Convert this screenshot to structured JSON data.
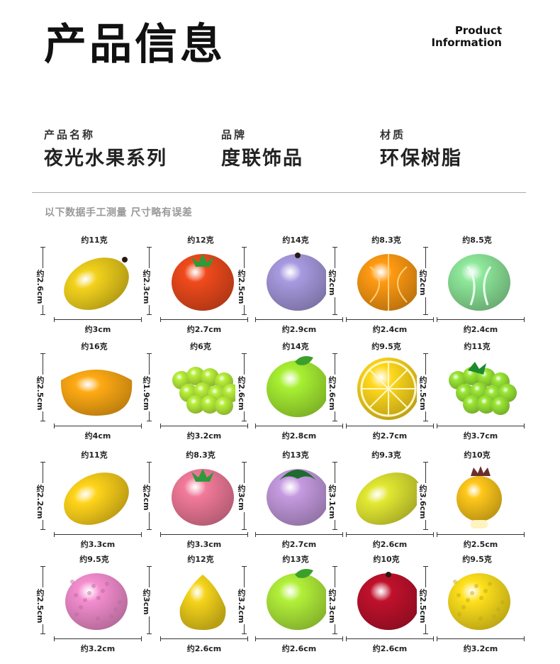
{
  "header": {
    "title": "产品信息",
    "subtitle_line1": "Product",
    "subtitle_line2": "Information"
  },
  "info": {
    "name_label": "产品名称",
    "name_value": "夜光水果系列",
    "brand_label": "品牌",
    "brand_value": "度联饰品",
    "material_label": "材质",
    "material_value": "环保树脂"
  },
  "note": "以下数据手工测量 尺寸略有误差",
  "products": [
    {
      "weight": "约11克",
      "height": "约2.6cm",
      "width": "约3cm",
      "icon": "mango-icon",
      "color": "#f2d21c"
    },
    {
      "weight": "约12克",
      "height": "约2.3cm",
      "width": "约2.7cm",
      "icon": "tomato-icon",
      "color": "#f04a1c"
    },
    {
      "weight": "约14克",
      "height": "约2.5cm",
      "width": "约2.9cm",
      "icon": "plum-icon",
      "color": "#a89ae0"
    },
    {
      "weight": "约8.3克",
      "height": "约2cm",
      "width": "约2.4cm",
      "icon": "orange-icon",
      "color": "#ff9a12"
    },
    {
      "weight": "约8.5克",
      "height": "约2cm",
      "width": "约2.4cm",
      "icon": "cabbage-icon",
      "color": "#8ee89a"
    },
    {
      "weight": "约16克",
      "height": "约2.5cm",
      "width": "约4cm",
      "icon": "orange-slice-icon",
      "color": "#ffaa14"
    },
    {
      "weight": "约6克",
      "height": "约1.9cm",
      "width": "约3.2cm",
      "icon": "grapes-icon",
      "color": "#b8f03a"
    },
    {
      "weight": "约14克",
      "height": "约2.6cm",
      "width": "约2.8cm",
      "icon": "green-apple-icon",
      "color": "#a8f032"
    },
    {
      "weight": "约9.5克",
      "height": "约2.6cm",
      "width": "约2.7cm",
      "icon": "lemon-slice-icon",
      "color": "#ffd81c"
    },
    {
      "weight": "约11克",
      "height": "约2.5cm",
      "width": "约3.7cm",
      "icon": "green-grapes-icon",
      "color": "#9be836"
    },
    {
      "weight": "约11克",
      "height": "约2.2cm",
      "width": "约3.3cm",
      "icon": "lemon-icon",
      "color": "#ffd41a"
    },
    {
      "weight": "约8.3克",
      "height": "约2cm",
      "width": "约3.3cm",
      "icon": "peach-icon",
      "color": "#f27a9a"
    },
    {
      "weight": "约13克",
      "height": "约3cm",
      "width": "约2.7cm",
      "icon": "mangosteen-icon",
      "color": "#c59be0"
    },
    {
      "weight": "约9.3克",
      "height": "约3.1cm",
      "width": "约2.6cm",
      "icon": "starfruit-icon",
      "color": "#e2e832"
    },
    {
      "weight": "约10克",
      "height": "约3.6cm",
      "width": "约2.5cm",
      "icon": "pomegranate-icon",
      "color": "#ffc81a"
    },
    {
      "weight": "约9.5克",
      "height": "约2.5cm",
      "width": "约3.2cm",
      "icon": "lychee-icon",
      "color": "#f58ed0"
    },
    {
      "weight": "约12克",
      "height": "约3cm",
      "width": "约2.6cm",
      "icon": "yellow-pear-icon",
      "color": "#f5d41a"
    },
    {
      "weight": "约13克",
      "height": "约3.2cm",
      "width": "约2.6cm",
      "icon": "lime-apple-icon",
      "color": "#b2f03a"
    },
    {
      "weight": "约10克",
      "height": "约2.3cm",
      "width": "约2.6cm",
      "icon": "red-apple-icon",
      "color": "#c0112c"
    },
    {
      "weight": "约9.5克",
      "height": "约2.5cm",
      "width": "约3.2cm",
      "icon": "yellow-lychee-icon",
      "color": "#ffe11c"
    }
  ]
}
